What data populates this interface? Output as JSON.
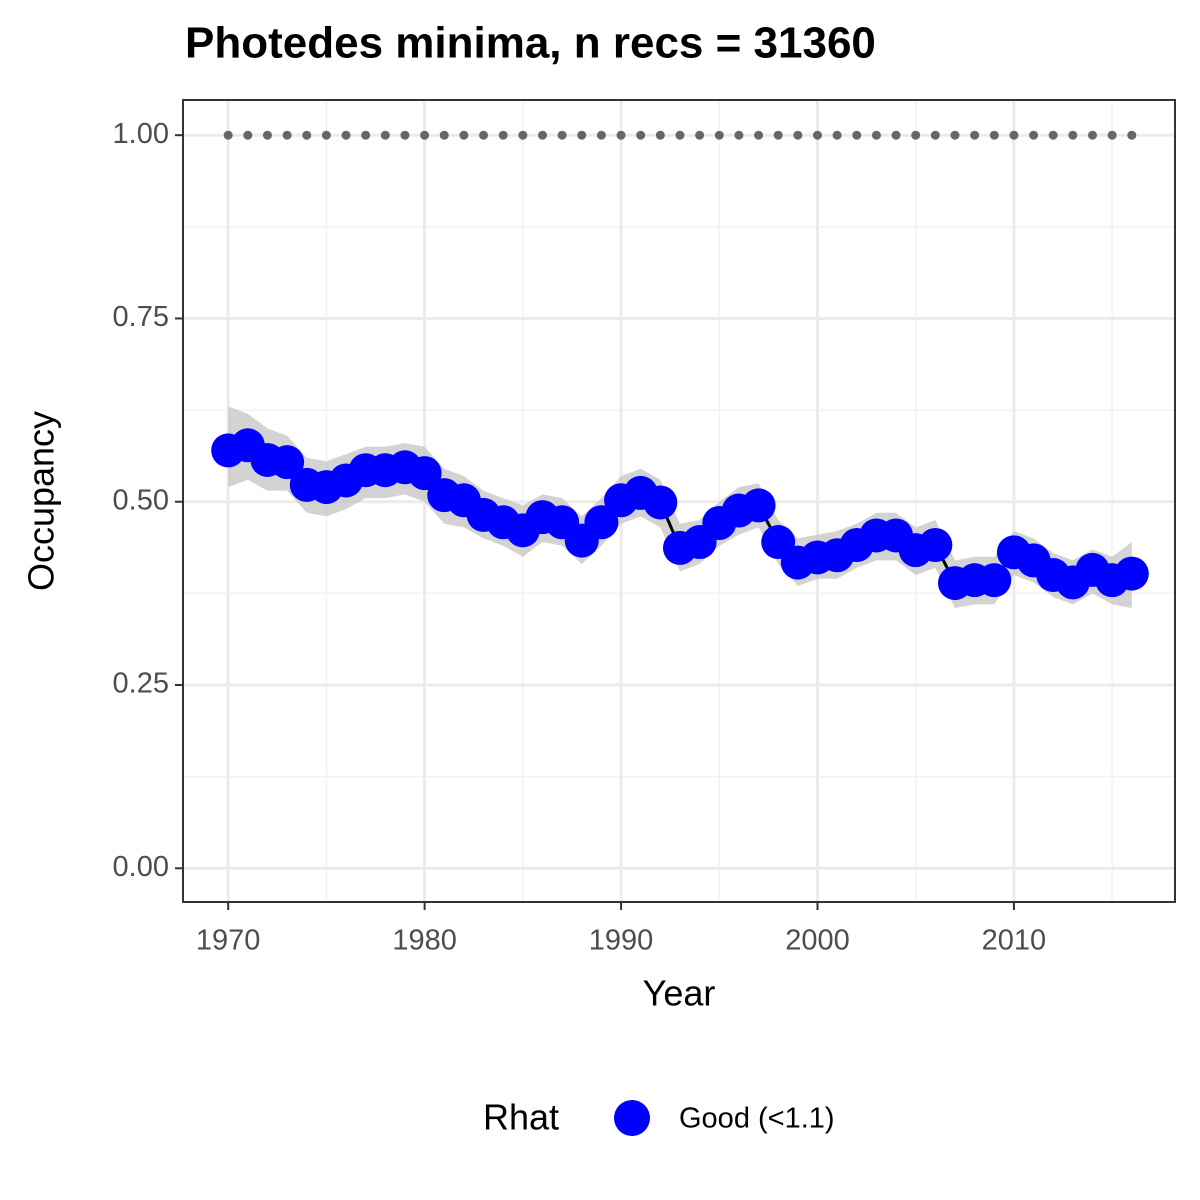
{
  "chart_data": {
    "type": "line",
    "title": "Photedes minima, n recs = 31360",
    "x_label": "Year",
    "y_label": "Occupancy",
    "legend_title": "Rhat",
    "x": [
      1970,
      1971,
      1972,
      1973,
      1974,
      1975,
      1976,
      1977,
      1978,
      1979,
      1980,
      1981,
      1982,
      1983,
      1984,
      1985,
      1986,
      1987,
      1988,
      1989,
      1990,
      1991,
      1992,
      1993,
      1994,
      1995,
      1996,
      1997,
      1998,
      1999,
      2000,
      2001,
      2002,
      2003,
      2004,
      2005,
      2006,
      2007,
      2008,
      2009,
      2010,
      2011,
      2012,
      2013,
      2014,
      2015,
      2016
    ],
    "series": [
      {
        "name": "Good (<1.1)",
        "color": "#0000ff",
        "line_color": "#000000",
        "ribbon_color": "#c4c4c4",
        "values": [
          0.57,
          0.577,
          0.557,
          0.554,
          0.523,
          0.52,
          0.529,
          0.543,
          0.543,
          0.547,
          0.539,
          0.509,
          0.502,
          0.482,
          0.472,
          0.461,
          0.479,
          0.472,
          0.447,
          0.472,
          0.502,
          0.512,
          0.499,
          0.437,
          0.445,
          0.471,
          0.488,
          0.495,
          0.445,
          0.417,
          0.424,
          0.427,
          0.441,
          0.454,
          0.454,
          0.434,
          0.441,
          0.389,
          0.393,
          0.393,
          0.431,
          0.42,
          0.4,
          0.39,
          0.407,
          0.393,
          0.402
        ],
        "upper": [
          0.63,
          0.62,
          0.6,
          0.59,
          0.56,
          0.555,
          0.565,
          0.575,
          0.575,
          0.58,
          0.575,
          0.545,
          0.535,
          0.515,
          0.505,
          0.495,
          0.51,
          0.505,
          0.48,
          0.505,
          0.535,
          0.545,
          0.53,
          0.47,
          0.475,
          0.5,
          0.52,
          0.525,
          0.475,
          0.45,
          0.455,
          0.46,
          0.47,
          0.485,
          0.485,
          0.465,
          0.475,
          0.42,
          0.425,
          0.425,
          0.46,
          0.45,
          0.43,
          0.42,
          0.435,
          0.425,
          0.445
        ],
        "lower": [
          0.52,
          0.53,
          0.515,
          0.515,
          0.485,
          0.48,
          0.49,
          0.505,
          0.505,
          0.51,
          0.5,
          0.47,
          0.465,
          0.45,
          0.44,
          0.425,
          0.445,
          0.44,
          0.415,
          0.44,
          0.47,
          0.48,
          0.465,
          0.405,
          0.415,
          0.44,
          0.455,
          0.465,
          0.415,
          0.385,
          0.395,
          0.395,
          0.41,
          0.42,
          0.42,
          0.4,
          0.41,
          0.355,
          0.36,
          0.36,
          0.4,
          0.39,
          0.37,
          0.36,
          0.375,
          0.36,
          0.355
        ]
      }
    ],
    "reference_line": {
      "value": 1,
      "color": "#666666"
    },
    "xlim": [
      1967.7,
      2018.2
    ],
    "ylim": [
      -0.046,
      1.048
    ],
    "xticks": [
      1970,
      1980,
      1990,
      2000,
      2010
    ],
    "yticks": [
      {
        "value": 0,
        "label": "0.00"
      },
      {
        "value": 0.25,
        "label": "0.25"
      },
      {
        "value": 0.5,
        "label": "0.50"
      },
      {
        "value": 0.75,
        "label": "0.75"
      },
      {
        "value": 1,
        "label": "1.00"
      }
    ],
    "x_minor_ticks": [
      1975,
      1985,
      1995,
      2005,
      2015
    ],
    "y_minor_ticks": [
      0.125,
      0.375,
      0.625,
      0.875
    ],
    "grid": true,
    "legend_position": "bottom"
  }
}
